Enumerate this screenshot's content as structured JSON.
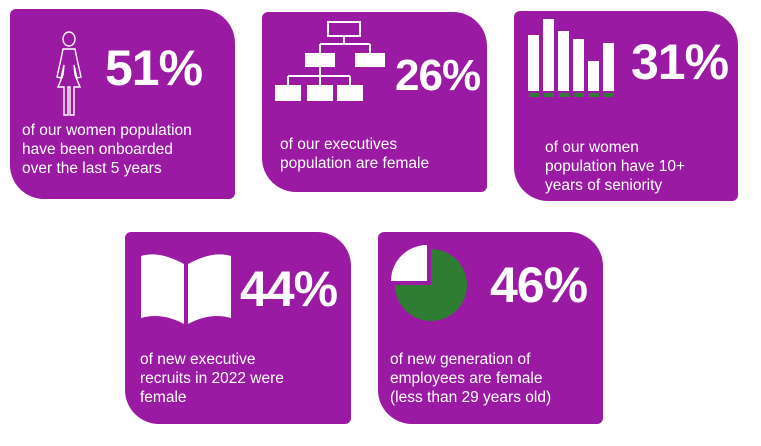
{
  "colors": {
    "card_bg": "#9b1aa3",
    "text": "#ffffff",
    "accent_green": "#2e7d32"
  },
  "cards": [
    {
      "icon": "woman-icon",
      "percent": "51%",
      "lines": [
        "of our women population",
        "have been onboarded",
        "over the last 5 years"
      ]
    },
    {
      "icon": "org-chart-icon",
      "percent": "26%",
      "lines": [
        "of our executives",
        "population are female"
      ]
    },
    {
      "icon": "bar-chart-icon",
      "percent": "31%",
      "lines": [
        "of our women",
        "population have 10+",
        "years of seniority"
      ]
    },
    {
      "icon": "open-book-icon",
      "percent": "44%",
      "lines": [
        "of new executive",
        "recruits in 2022 were",
        "female"
      ]
    },
    {
      "icon": "pie-chart-icon",
      "percent": "46%",
      "lines": [
        "of new generation of",
        "employees are female",
        "(less than 29 years old)"
      ]
    }
  ]
}
